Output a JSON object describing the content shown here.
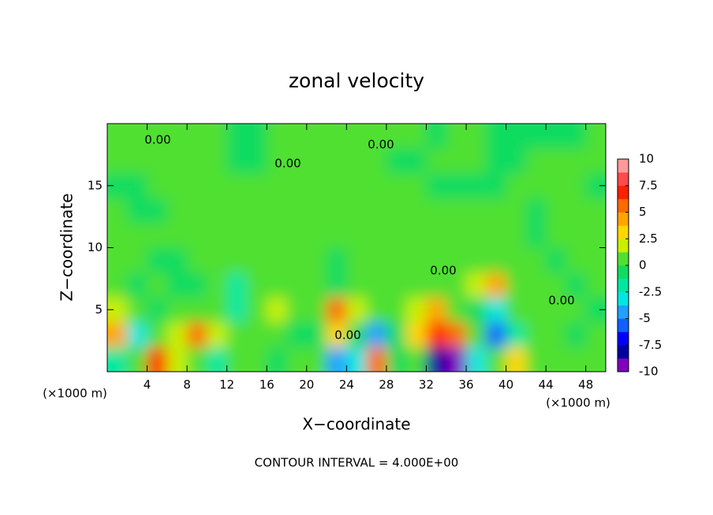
{
  "chart_data": {
    "type": "contour",
    "title": "zonal velocity",
    "x_label": "X−coordinate",
    "y_label": "Z−coordinate",
    "x_unit": "(×1000 m)",
    "y_unit": "(×1000 m)",
    "footer": "CONTOUR INTERVAL = 4.000E+00",
    "contour_labels": [
      "0.00",
      "0.00",
      "0.00",
      "0.00",
      "0.00",
      "0.00"
    ],
    "xlim": [
      0,
      50
    ],
    "ylim": [
      0,
      20
    ],
    "xticks": [
      4,
      8,
      12,
      16,
      20,
      24,
      28,
      32,
      36,
      40,
      44,
      48
    ],
    "yticks": [
      5,
      10,
      15
    ],
    "x": [
      1,
      3,
      5,
      7,
      9,
      11,
      13,
      15,
      17,
      19,
      21,
      23,
      25,
      27,
      29,
      31,
      33,
      35,
      37,
      39,
      41,
      43,
      45,
      47,
      49
    ],
    "y": [
      1,
      3,
      5,
      7,
      9,
      11,
      13,
      15,
      17,
      19
    ],
    "z": [
      [
        -2,
        1,
        7,
        2,
        0,
        -2,
        0,
        0,
        -1,
        0,
        0,
        -4,
        -3,
        5,
        -1,
        1,
        -8,
        -9,
        -3,
        1,
        3,
        1,
        0,
        0,
        0
      ],
      [
        4,
        -3,
        0,
        2,
        6,
        2,
        0,
        0,
        1,
        -1,
        -1,
        3,
        -1,
        -4,
        -1,
        3,
        7,
        5,
        0,
        -6,
        -2,
        0,
        0,
        -1,
        0
      ],
      [
        2,
        0,
        -1,
        0,
        1,
        1,
        -2,
        1,
        2,
        1,
        1,
        6,
        2,
        0,
        1,
        2,
        4,
        1,
        -1,
        -3,
        1,
        0,
        0,
        0,
        -1
      ],
      [
        0,
        -1,
        0,
        -1,
        -1,
        0,
        -2,
        0,
        1,
        0,
        1,
        -1,
        0,
        0,
        0,
        0,
        1,
        1,
        2,
        4,
        1,
        0,
        0,
        -1,
        0
      ],
      [
        0,
        0,
        -1,
        -1,
        0,
        0,
        0,
        0,
        1,
        1,
        0,
        -1,
        0,
        0,
        0,
        0,
        0,
        0,
        1,
        1,
        0,
        0,
        -1,
        0,
        0
      ],
      [
        0,
        0,
        0,
        0,
        0,
        1,
        1,
        0,
        0,
        0,
        1,
        1,
        1,
        0,
        0,
        0,
        0,
        0,
        0,
        0,
        0,
        -1,
        0,
        0,
        0
      ],
      [
        0,
        -1,
        -1,
        0,
        0,
        0,
        1,
        1,
        1,
        1,
        1,
        1,
        1,
        1,
        0,
        0,
        0,
        0,
        0,
        0,
        0,
        -1,
        0,
        0,
        0
      ],
      [
        -1,
        -1,
        0,
        0,
        0,
        0,
        0,
        1,
        1,
        1,
        1,
        1,
        1,
        1,
        1,
        0,
        -1,
        -1,
        -1,
        -1,
        0,
        0,
        0,
        0,
        -1
      ],
      [
        0,
        0,
        1,
        1,
        0,
        0,
        -1,
        -1,
        0,
        0,
        0,
        0,
        0,
        0,
        -1,
        -1,
        0,
        0,
        0,
        -1,
        -1,
        0,
        0,
        0,
        0
      ],
      [
        0,
        0,
        0,
        0,
        0,
        0,
        -1,
        -1,
        0,
        0,
        0,
        0,
        0,
        0,
        0,
        0,
        -1,
        0,
        0,
        -1,
        -1,
        -1,
        -1,
        -1,
        0
      ]
    ],
    "colorbar_lim": [
      -10,
      10
    ],
    "colorbar_ticks": [
      -10,
      -7.5,
      -5,
      -2.5,
      0,
      2.5,
      5,
      7.5,
      10
    ],
    "color_bounds": [
      -10,
      -8.75,
      -7.5,
      -6.25,
      -5,
      -3.75,
      -2.5,
      -1.25,
      0,
      1.25,
      2.5,
      3.75,
      5,
      6.25,
      7.5,
      8.75,
      10
    ],
    "colors": [
      "#8000c0",
      "#0000a0",
      "#0000ff",
      "#1060ff",
      "#20a0ff",
      "#00e8e0",
      "#00e8a0",
      "#10dc60",
      "#50e030",
      "#c8f000",
      "#ffd700",
      "#ffa500",
      "#ff6a00",
      "#ff2000",
      "#ff4a4a",
      "#ff9a9a"
    ]
  }
}
